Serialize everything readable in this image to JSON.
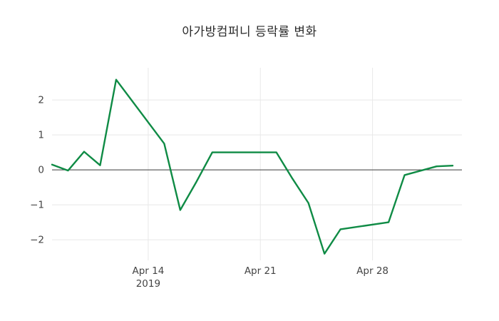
{
  "chart_data": {
    "type": "line",
    "title": "아가방컴퍼니 등락률 변화",
    "xlabel": "",
    "ylabel": "",
    "series": [
      {
        "name": "등락률",
        "x": [
          "2019-04-08",
          "2019-04-09",
          "2019-04-10",
          "2019-04-11",
          "2019-04-12",
          "2019-04-15",
          "2019-04-16",
          "2019-04-17",
          "2019-04-18",
          "2019-04-19",
          "2019-04-22",
          "2019-04-23",
          "2019-04-24",
          "2019-04-25",
          "2019-04-26",
          "2019-04-29",
          "2019-04-30",
          "2019-05-02",
          "2019-05-03"
        ],
        "y": [
          0.15,
          -0.02,
          0.52,
          0.13,
          2.58,
          0.75,
          -1.15,
          -0.35,
          0.5,
          0.5,
          0.5,
          -0.25,
          -0.95,
          -2.4,
          -1.7,
          -1.5,
          -0.15,
          0.1,
          0.12
        ],
        "color": "#0f8b45"
      }
    ],
    "ylim": [
      -2.59,
      2.92
    ],
    "y_ticks": [
      -2,
      -1,
      0,
      1,
      2
    ],
    "y_tick_labels": [
      "−2",
      "−1",
      "0",
      "1",
      "2"
    ],
    "x_ticks": [
      {
        "date": "2019-04-14",
        "label": "Apr 14",
        "year_label": "2019"
      },
      {
        "date": "2019-04-21",
        "label": "Apr 21",
        "year_label": ""
      },
      {
        "date": "2019-04-28",
        "label": "Apr 28",
        "year_label": ""
      }
    ],
    "grid": true,
    "zeroline": true,
    "legend": false,
    "colors": {
      "line": "#0f8b45",
      "grid": "#e8e8e8",
      "zero_line": "#3d3d3d",
      "tick_text": "#444444",
      "title_text": "#2a2a2a",
      "background": "#ffffff"
    }
  }
}
